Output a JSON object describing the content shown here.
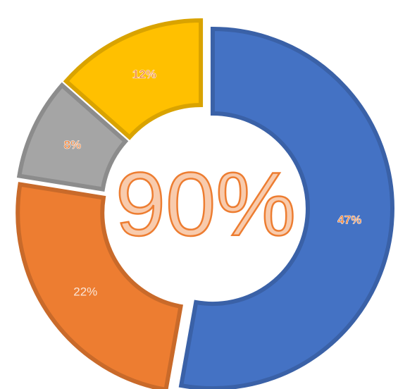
{
  "chart_data": {
    "type": "donut",
    "center_label": "90%",
    "categories": [
      null,
      null,
      null,
      null
    ],
    "values": [
      47,
      22,
      8,
      12
    ],
    "value_labels": [
      "47%",
      "22%",
      "8%",
      "12%"
    ],
    "colors": [
      "#4472c4",
      "#ed7d31",
      "#a5a5a5",
      "#ffc000"
    ]
  }
}
